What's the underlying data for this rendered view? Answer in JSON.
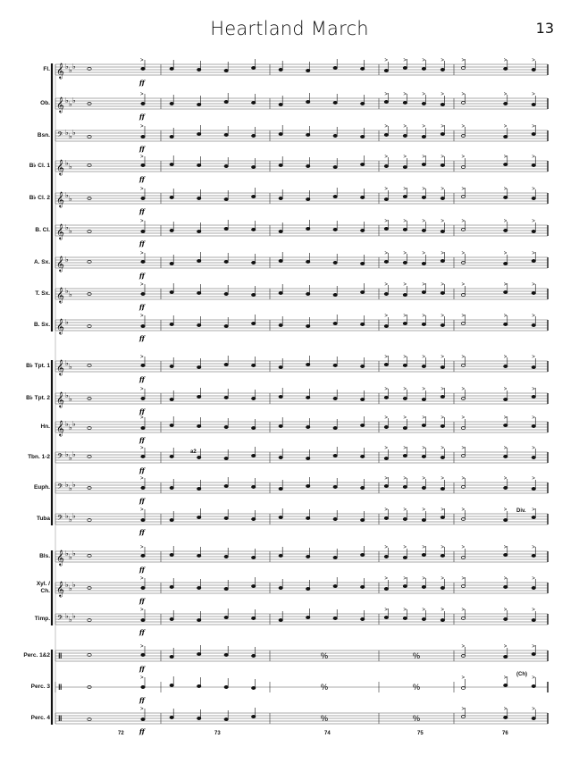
{
  "header": {
    "title": "Heartland March",
    "page_number": "13"
  },
  "dynamic": "ff",
  "annotations": {
    "a2": "a2",
    "div": "Div.",
    "chimes": "(Ch)"
  },
  "measures": [
    "72",
    "73",
    "74",
    "75",
    "76"
  ],
  "instruments": [
    {
      "label": "Fl.",
      "clef": "treble",
      "flats": 3
    },
    {
      "label": "Ob.",
      "clef": "treble",
      "flats": 3
    },
    {
      "label": "Bsn.",
      "clef": "bass",
      "flats": 3
    },
    {
      "label": "B♭ Cl. 1",
      "clef": "treble",
      "flats": 2
    },
    {
      "label": "B♭ Cl. 2",
      "clef": "treble",
      "flats": 2
    },
    {
      "label": "B. Cl.",
      "clef": "treble",
      "flats": 2
    },
    {
      "label": "A. Sx.",
      "clef": "treble",
      "flats": 1
    },
    {
      "label": "T. Sx.",
      "clef": "treble",
      "flats": 2
    },
    {
      "label": "B. Sx.",
      "clef": "treble",
      "flats": 1
    },
    {
      "label": "B♭ Tpt. 1",
      "clef": "treble",
      "flats": 2
    },
    {
      "label": "B♭ Tpt. 2",
      "clef": "treble",
      "flats": 2
    },
    {
      "label": "Hn.",
      "clef": "treble",
      "flats": 3
    },
    {
      "label": "Tbn. 1-2",
      "clef": "bass",
      "flats": 3
    },
    {
      "label": "Euph.",
      "clef": "bass",
      "flats": 3
    },
    {
      "label": "Tuba",
      "clef": "bass",
      "flats": 3
    },
    {
      "label": "Bls.",
      "clef": "treble",
      "flats": 3
    },
    {
      "label": "Xyl. /\nCh.",
      "clef": "treble",
      "flats": 3
    },
    {
      "label": "Timp.",
      "clef": "bass",
      "flats": 3
    },
    {
      "label": "Perc. 1&2",
      "clef": "percussion",
      "flats": 0
    },
    {
      "label": "Perc. 3",
      "clef": "percussion",
      "flats": 0
    },
    {
      "label": "Perc. 4",
      "clef": "percussion",
      "flats": 0
    }
  ]
}
